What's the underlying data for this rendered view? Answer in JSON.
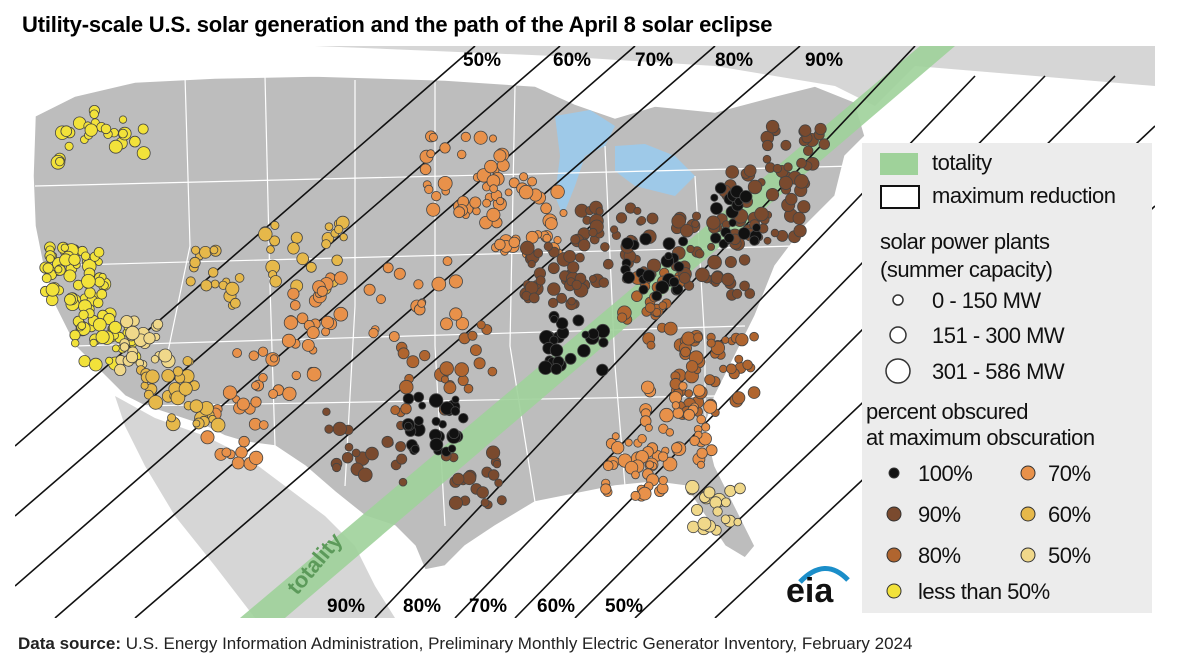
{
  "title": "Utility-scale U.S. solar generation and the path of the April 8 solar eclipse",
  "map_labels": {
    "top_percent": [
      "50%",
      "60%",
      "70%",
      "80%",
      "90%"
    ],
    "bottom_percent": [
      "90%",
      "80%",
      "70%",
      "60%",
      "50%"
    ],
    "totality_label": "totality"
  },
  "legend": {
    "path": [
      {
        "label": "totality",
        "color": "#9fd29a"
      },
      {
        "label": "maximum reduction",
        "color": "#ffffff"
      }
    ],
    "size_title_line1": "solar power plants",
    "size_title_line2": "(summer capacity)",
    "sizes": [
      {
        "label": "0 - 150 MW"
      },
      {
        "label": "151 - 300 MW"
      },
      {
        "label": "301 - 586 MW"
      }
    ],
    "color_title_line1": "percent obscured",
    "color_title_line2": "at maximum obscuration",
    "colors": [
      {
        "label": "100%",
        "color": "#111111"
      },
      {
        "label": "70%",
        "color": "#e8914a"
      },
      {
        "label": "90%",
        "color": "#7a4a2e"
      },
      {
        "label": "60%",
        "color": "#e6b84a"
      },
      {
        "label": "80%",
        "color": "#b0652f"
      },
      {
        "label": "50%",
        "color": "#f0d88a"
      },
      {
        "label": "less than 50%",
        "color": "#f2e23a"
      }
    ]
  },
  "logo": {
    "text": "eia",
    "arc_color": "#1b8ec9"
  },
  "source": {
    "label": "Data source:",
    "text": " U.S. Energy Information Administration, Preliminary Monthly Electric Generator Inventory, February 2024"
  }
}
